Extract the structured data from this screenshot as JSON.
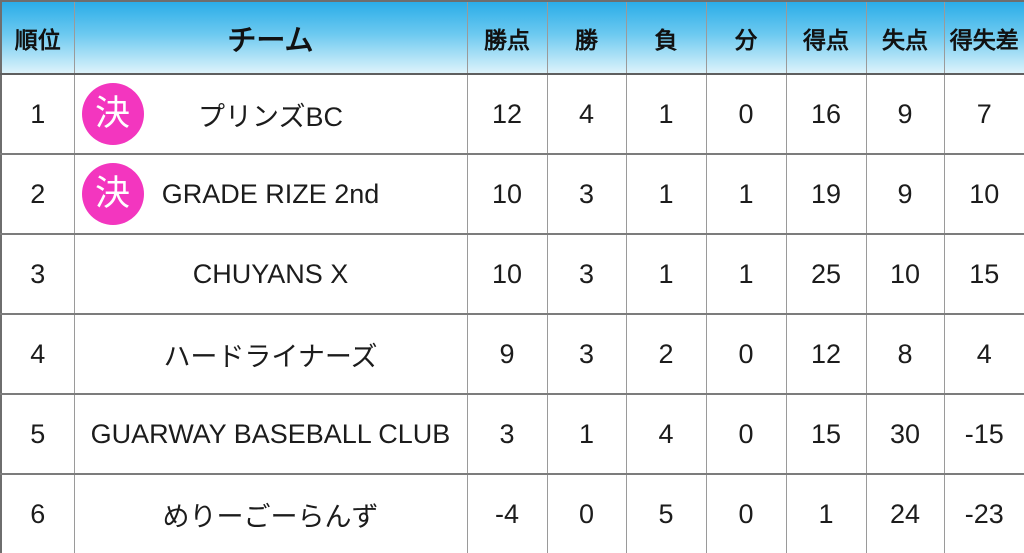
{
  "colors": {
    "badge-pink": "#F336BF",
    "header-grad-top": "#2BADE8",
    "header-grad-mid": "#6CC9F0",
    "header-grad-bottom": "#DDF3FB",
    "grid-line": "#9a9a9a",
    "text": "#1c1c1c"
  },
  "header": {
    "rank": "順位",
    "team": "チーム",
    "points": "勝点",
    "wins": "勝",
    "losses": "負",
    "draws": "分",
    "scored": "得点",
    "conceded": "失点",
    "diff": "得失差"
  },
  "rows": [
    {
      "rank": "1",
      "badge": "決",
      "team": "プリンズBC",
      "points": "12",
      "wins": "4",
      "losses": "1",
      "draws": "0",
      "scored": "16",
      "conceded": "9",
      "diff": "7"
    },
    {
      "rank": "2",
      "badge": "決",
      "team": "GRADE RIZE 2nd",
      "points": "10",
      "wins": "3",
      "losses": "1",
      "draws": "1",
      "scored": "19",
      "conceded": "9",
      "diff": "10"
    },
    {
      "rank": "3",
      "badge": "",
      "team": "CHUYANS X",
      "points": "10",
      "wins": "3",
      "losses": "1",
      "draws": "1",
      "scored": "25",
      "conceded": "10",
      "diff": "15"
    },
    {
      "rank": "4",
      "badge": "",
      "team": "ハードライナーズ",
      "points": "9",
      "wins": "3",
      "losses": "2",
      "draws": "0",
      "scored": "12",
      "conceded": "8",
      "diff": "4"
    },
    {
      "rank": "5",
      "badge": "",
      "team": "GUARWAY BASEBALL CLUB",
      "points": "3",
      "wins": "1",
      "losses": "4",
      "draws": "0",
      "scored": "15",
      "conceded": "30",
      "diff": "-15"
    },
    {
      "rank": "6",
      "badge": "",
      "team": "めりーごーらんず",
      "points": "-4",
      "wins": "0",
      "losses": "5",
      "draws": "0",
      "scored": "1",
      "conceded": "24",
      "diff": "-23"
    }
  ],
  "chart_data": {
    "type": "table",
    "title": "League standings",
    "columns": [
      "順位",
      "チーム",
      "勝点",
      "勝",
      "負",
      "分",
      "得点",
      "失点",
      "得失差"
    ],
    "rows": [
      [
        1,
        "プリンズBC (決)",
        12,
        4,
        1,
        0,
        16,
        9,
        7
      ],
      [
        2,
        "GRADE RIZE 2nd (決)",
        10,
        3,
        1,
        1,
        19,
        9,
        10
      ],
      [
        3,
        "CHUYANS X",
        10,
        3,
        1,
        1,
        25,
        10,
        15
      ],
      [
        4,
        "ハードライナーズ",
        9,
        3,
        2,
        0,
        12,
        8,
        4
      ],
      [
        5,
        "GUARWAY BASEBALL CLUB",
        3,
        1,
        4,
        0,
        15,
        30,
        -15
      ],
      [
        6,
        "めりーごーらんず",
        -4,
        0,
        5,
        0,
        1,
        24,
        -23
      ]
    ]
  }
}
